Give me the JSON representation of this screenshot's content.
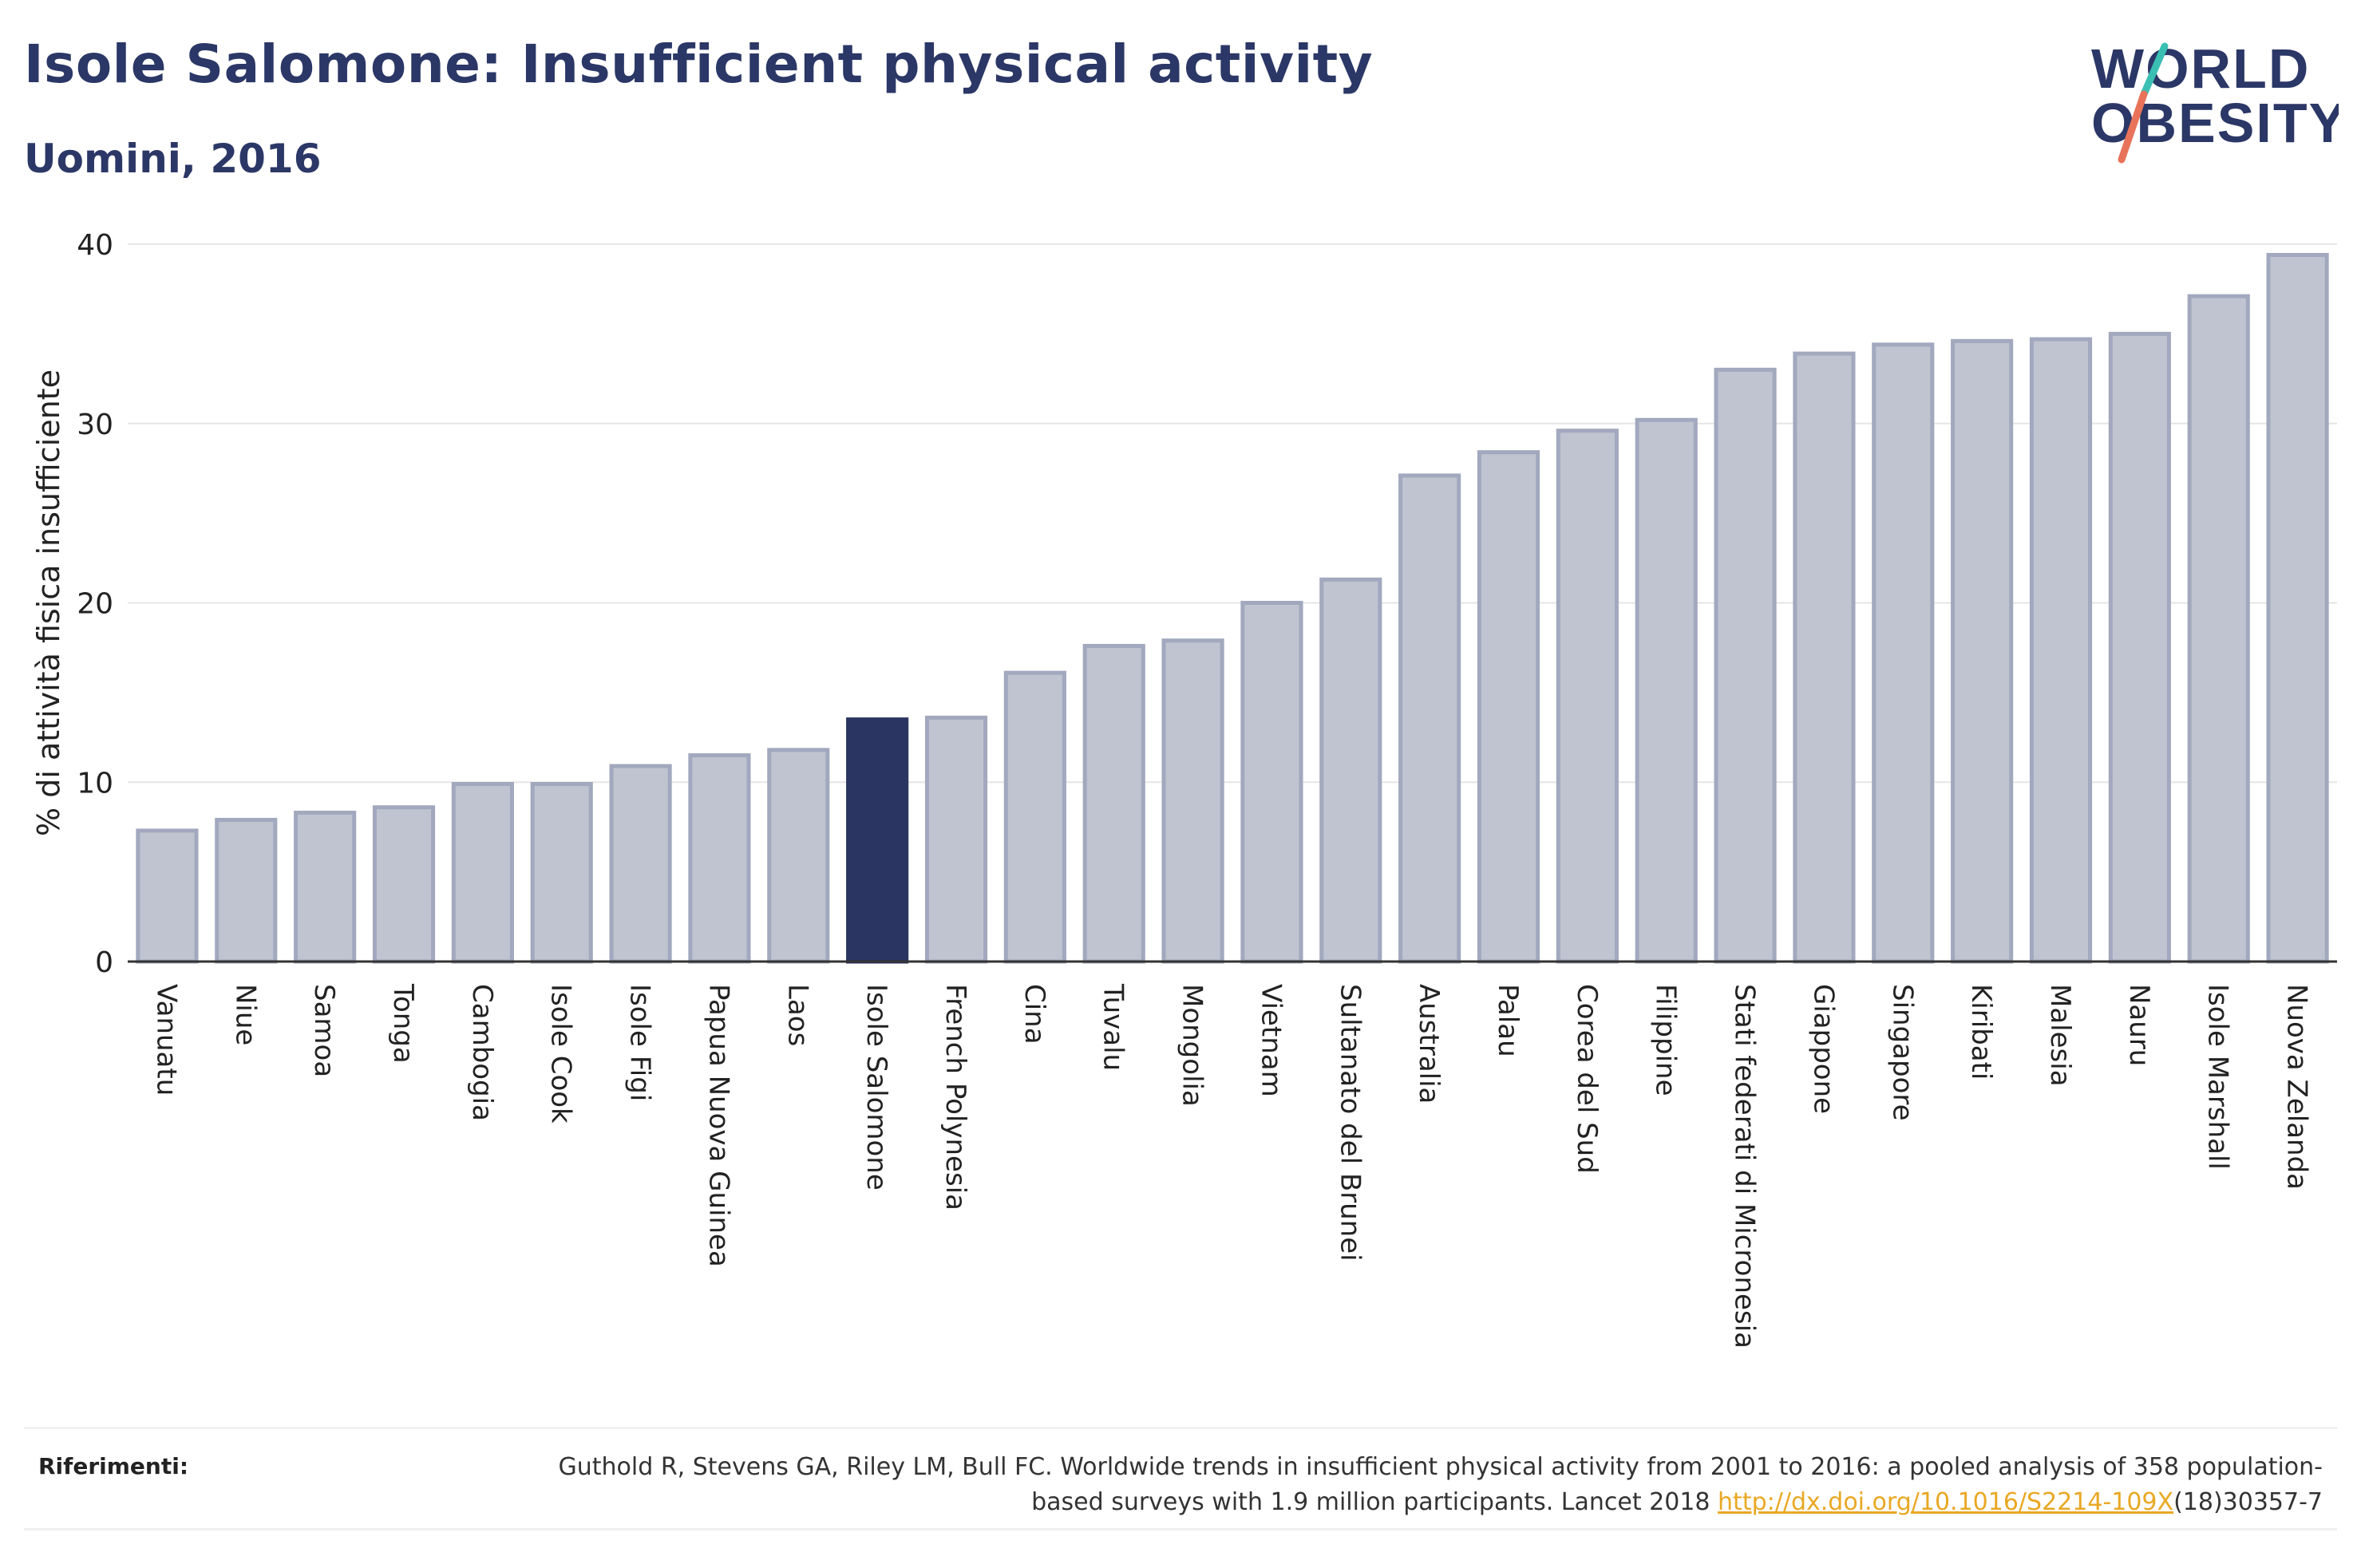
{
  "header": {
    "title": "Isole Salomone: Insufficient physical activity",
    "subtitle": "Uomini, 2016"
  },
  "logo": {
    "line1": "WORLD",
    "line2": "OBESITY",
    "colors": {
      "text": "#2b3766",
      "slash_teal": "#3bbfb3",
      "slash_coral": "#e8735a"
    }
  },
  "colors": {
    "bar": "#c0c4d1",
    "bar_border": "#a2a8bd",
    "highlight": "#2b3561",
    "grid": "#e6e6e6",
    "axis": "#333333"
  },
  "chart_data": {
    "type": "bar",
    "title": "",
    "xlabel": "",
    "ylabel": "% di attività fisica insufficiente",
    "ylim": [
      0,
      40
    ],
    "yticks": [
      0,
      10,
      20,
      30,
      40
    ],
    "grid": true,
    "highlight": "Isole Salomone",
    "categories": [
      "Vanuatu",
      "Niue",
      "Samoa",
      "Tonga",
      "Cambogia",
      "Isole Cook",
      "Isole Figi",
      "Papua Nuova Guinea",
      "Laos",
      "Isole Salomone",
      "French Polynesia",
      "Cina",
      "Tuvalu",
      "Mongolia",
      "Vietnam",
      "Sultanato del Brunei",
      "Australia",
      "Palau",
      "Corea del Sud",
      "Filippine",
      "Stati federati di Micronesia",
      "Giappone",
      "Singapore",
      "Kiribati",
      "Malesia",
      "Nauru",
      "Isole Marshall",
      "Nuova Zelanda"
    ],
    "values": [
      7.3,
      7.9,
      8.3,
      8.6,
      9.9,
      9.9,
      10.9,
      11.5,
      11.8,
      13.5,
      13.6,
      16.1,
      17.6,
      17.9,
      20.0,
      21.3,
      27.1,
      28.4,
      29.6,
      30.2,
      33.0,
      33.9,
      34.4,
      34.6,
      34.7,
      35.0,
      37.1,
      39.4
    ]
  },
  "references": {
    "label": "Riferimenti:",
    "text_before": "Guthold R, Stevens GA, Riley LM, Bull FC. Worldwide trends in insufficient physical activity from 2001 to 2016: a pooled analysis of 358 population-based surveys with 1.9 million participants. Lancet 2018 ",
    "link": "http://dx.doi.org/10.1016/S2214-109X",
    "text_after": "(18)30357-7"
  }
}
